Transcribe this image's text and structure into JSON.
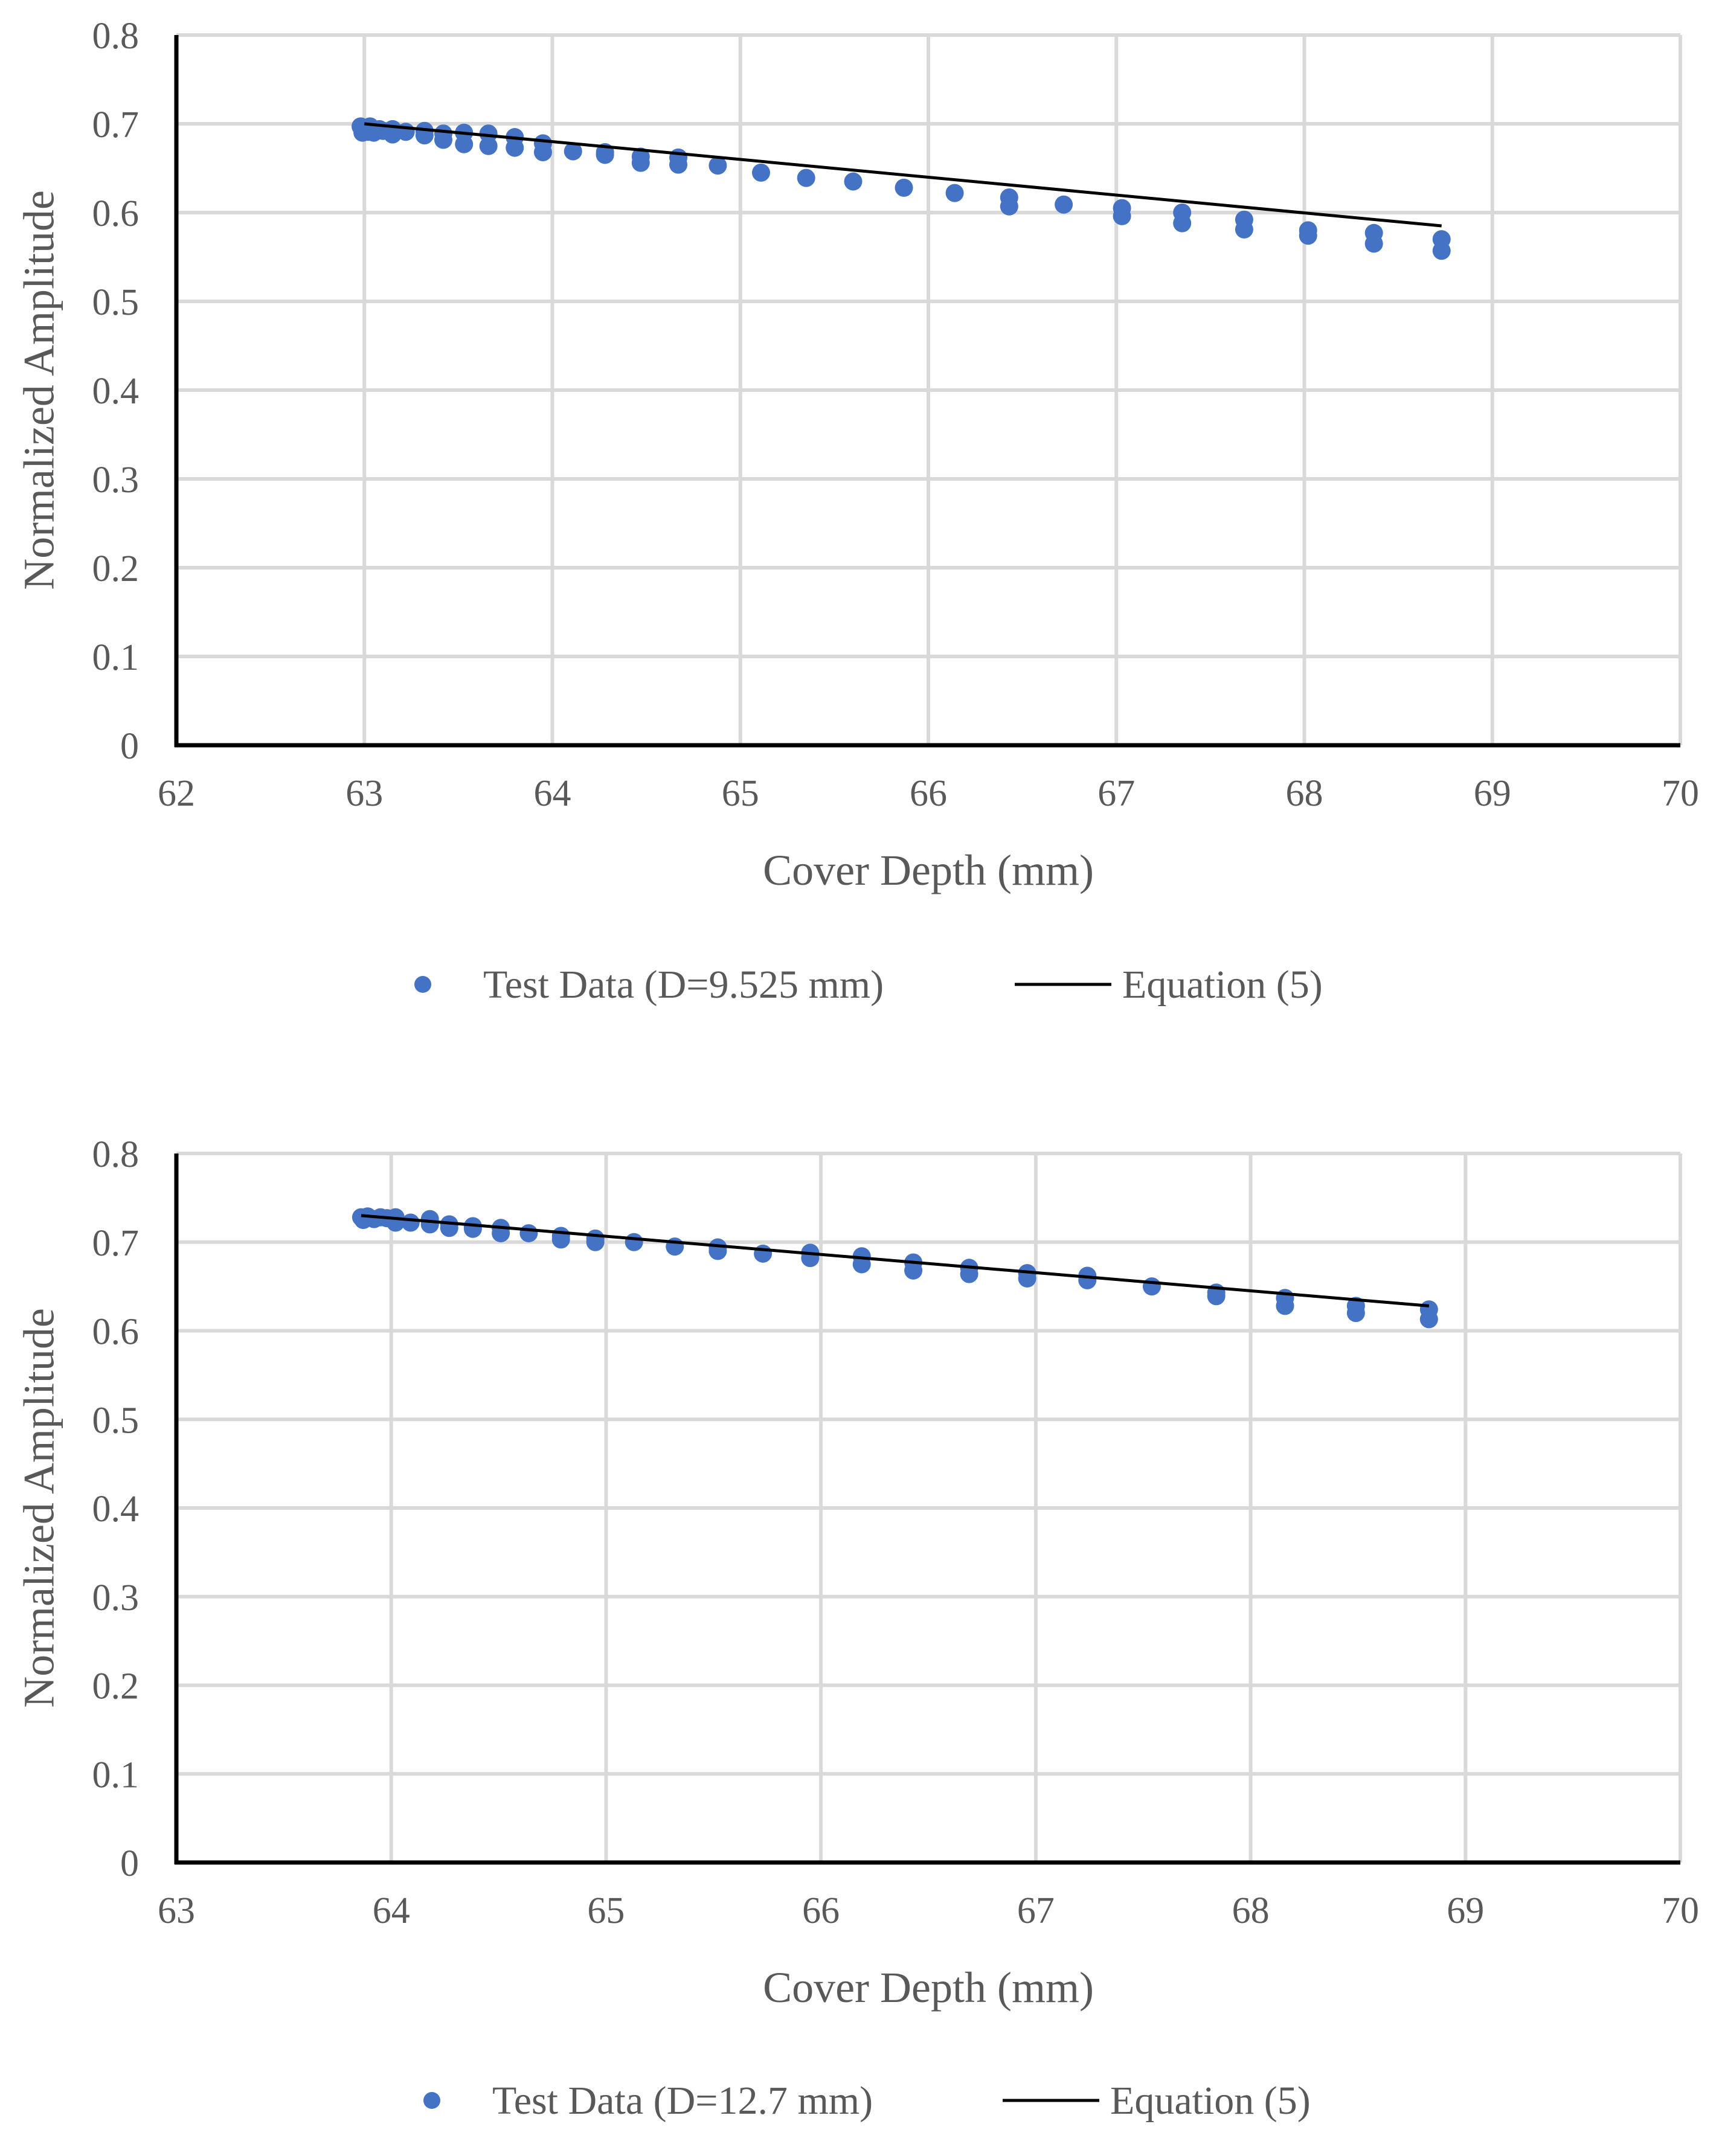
{
  "chart_data": [
    {
      "type": "scatter",
      "xlabel": "Cover Depth (mm)",
      "ylabel": "Normalized Amplitude",
      "xlim": [
        62,
        70
      ],
      "ylim": [
        0,
        0.8
      ],
      "xticks": [
        "62",
        "63",
        "64",
        "65",
        "66",
        "67",
        "68",
        "69",
        "70"
      ],
      "yticks": [
        "0",
        "0.1",
        "0.2",
        "0.3",
        "0.4",
        "0.5",
        "0.6",
        "0.7",
        "0.8"
      ],
      "grid": true,
      "legend_position": "bottom",
      "series": [
        {
          "name": "Test Data (D=9.525 mm)",
          "kind": "scatter",
          "color": "#4472c4",
          "x": [
            62.98,
            62.99,
            63.0,
            63.01,
            63.02,
            63.03,
            63.05,
            63.08,
            63.1,
            63.15,
            63.15,
            63.22,
            63.32,
            63.32,
            63.42,
            63.42,
            63.53,
            63.53,
            63.66,
            63.66,
            63.8,
            63.8,
            63.95,
            63.95,
            64.11,
            64.28,
            64.28,
            64.47,
            64.47,
            64.67,
            64.67,
            64.88,
            65.11,
            65.35,
            65.6,
            65.87,
            66.14,
            66.43,
            66.43,
            66.72,
            67.03,
            67.03,
            67.35,
            67.35,
            67.68,
            67.68,
            68.02,
            68.02,
            68.37,
            68.37,
            68.73,
            68.73
          ],
          "y": [
            0.697,
            0.69,
            0.695,
            0.693,
            0.691,
            0.697,
            0.69,
            0.694,
            0.692,
            0.694,
            0.688,
            0.691,
            0.692,
            0.687,
            0.689,
            0.682,
            0.69,
            0.677,
            0.689,
            0.675,
            0.685,
            0.673,
            0.678,
            0.668,
            0.669,
            0.668,
            0.665,
            0.663,
            0.656,
            0.662,
            0.654,
            0.653,
            0.645,
            0.639,
            0.635,
            0.628,
            0.622,
            0.617,
            0.607,
            0.609,
            0.605,
            0.596,
            0.6,
            0.588,
            0.592,
            0.581,
            0.58,
            0.574,
            0.577,
            0.565,
            0.57,
            0.557
          ]
        },
        {
          "name": "Equation (5)",
          "kind": "line",
          "color": "#000000",
          "x": [
            63.0,
            68.73
          ],
          "y": [
            0.7,
            0.585
          ]
        }
      ]
    },
    {
      "type": "scatter",
      "xlabel": "Cover Depth (mm)",
      "ylabel": "Normalized Amplitude",
      "xlim": [
        63,
        70
      ],
      "ylim": [
        0,
        0.8
      ],
      "xticks": [
        "63",
        "64",
        "65",
        "66",
        "67",
        "68",
        "69",
        "70"
      ],
      "yticks": [
        "0",
        "0.1",
        "0.2",
        "0.3",
        "0.4",
        "0.5",
        "0.6",
        "0.7",
        "0.8"
      ],
      "grid": true,
      "legend_position": "bottom",
      "series": [
        {
          "name": "Test Data (D=12.7 mm)",
          "kind": "scatter",
          "color": "#4472c4",
          "x": [
            63.86,
            63.87,
            63.89,
            63.92,
            63.95,
            63.98,
            64.02,
            64.02,
            64.09,
            64.18,
            64.18,
            64.27,
            64.27,
            64.38,
            64.38,
            64.51,
            64.51,
            64.64,
            64.79,
            64.79,
            64.95,
            64.95,
            65.13,
            65.32,
            65.52,
            65.52,
            65.73,
            65.95,
            65.95,
            66.19,
            66.19,
            66.43,
            66.43,
            66.69,
            66.69,
            66.96,
            66.96,
            67.24,
            67.24,
            67.54,
            67.84,
            67.84,
            68.16,
            68.16,
            68.49,
            68.49,
            68.83,
            68.83
          ],
          "y": [
            0.728,
            0.725,
            0.729,
            0.726,
            0.728,
            0.727,
            0.728,
            0.722,
            0.722,
            0.726,
            0.72,
            0.72,
            0.716,
            0.718,
            0.715,
            0.716,
            0.71,
            0.71,
            0.707,
            0.703,
            0.704,
            0.7,
            0.7,
            0.695,
            0.694,
            0.69,
            0.687,
            0.688,
            0.682,
            0.684,
            0.675,
            0.677,
            0.668,
            0.671,
            0.664,
            0.665,
            0.659,
            0.662,
            0.657,
            0.65,
            0.643,
            0.639,
            0.637,
            0.628,
            0.628,
            0.62,
            0.624,
            0.613
          ]
        },
        {
          "name": "Equation (5)",
          "kind": "line",
          "color": "#000000",
          "x": [
            63.86,
            68.83
          ],
          "y": [
            0.73,
            0.628
          ]
        }
      ]
    }
  ]
}
